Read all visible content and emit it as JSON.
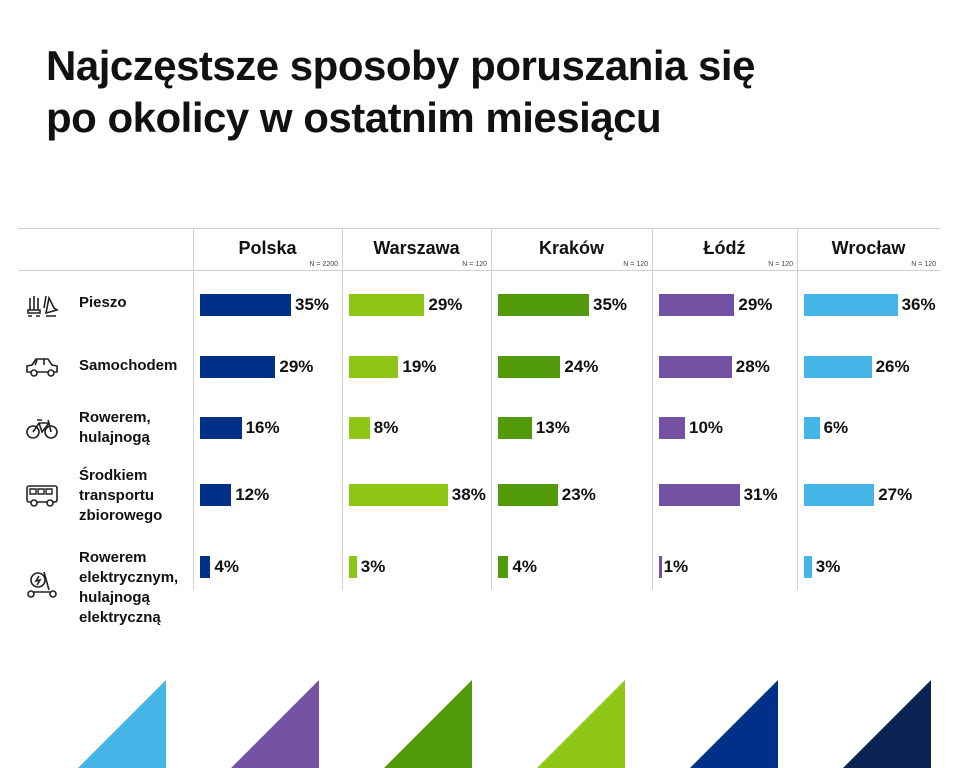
{
  "title_line1": "Najczęstsze sposoby poruszania się",
  "title_line2": "po okolicy w ostatnim miesiącu",
  "chart_data": {
    "type": "bar",
    "orientation": "horizontal",
    "title": "Najczęstsze sposoby poruszania się po okolicy w ostatnim miesiącu",
    "categories": [
      "Pieszo",
      "Samochodem",
      "Rowerem, hulajnogą",
      "Środkiem transportu zbiorowego",
      "Rowerem elektrycznym, hulajnogą elektryczną"
    ],
    "category_lines": [
      [
        "Pieszo"
      ],
      [
        "Samochodem"
      ],
      [
        "Rowerem,",
        "hulajnogą"
      ],
      [
        "Środkiem",
        "transportu",
        "zbiorowego"
      ],
      [
        "Rowerem",
        "elektrycznym,",
        "hulajnogą",
        "elektryczną"
      ]
    ],
    "category_icons": [
      "walking-shoes-icon",
      "car-icon",
      "bicycle-icon",
      "bus-icon",
      "electric-scooter-icon"
    ],
    "unit": "%",
    "series": [
      {
        "name": "Polska",
        "n_label": "N = 2200",
        "color": "#003087",
        "values": [
          35,
          29,
          16,
          12,
          4
        ]
      },
      {
        "name": "Warszawa",
        "n_label": "N = 120",
        "color": "#8DC614",
        "values": [
          29,
          19,
          8,
          38,
          3
        ]
      },
      {
        "name": "Kraków",
        "n_label": "N = 120",
        "color": "#519A0A",
        "values": [
          35,
          24,
          13,
          23,
          4
        ]
      },
      {
        "name": "Łódź",
        "n_label": "N = 120",
        "color": "#7452A3",
        "values": [
          29,
          28,
          10,
          31,
          1
        ]
      },
      {
        "name": "Wrocław",
        "n_label": "N = 120",
        "color": "#45B4E7",
        "values": [
          36,
          26,
          6,
          27,
          3
        ]
      }
    ],
    "xlim": [
      0,
      40
    ],
    "grid": false,
    "legend": "column headers"
  },
  "decor_triangles": [
    "#45B4E7",
    "#7452A3",
    "#519A0A",
    "#8DC614",
    "#003087",
    "#0A2555"
  ]
}
